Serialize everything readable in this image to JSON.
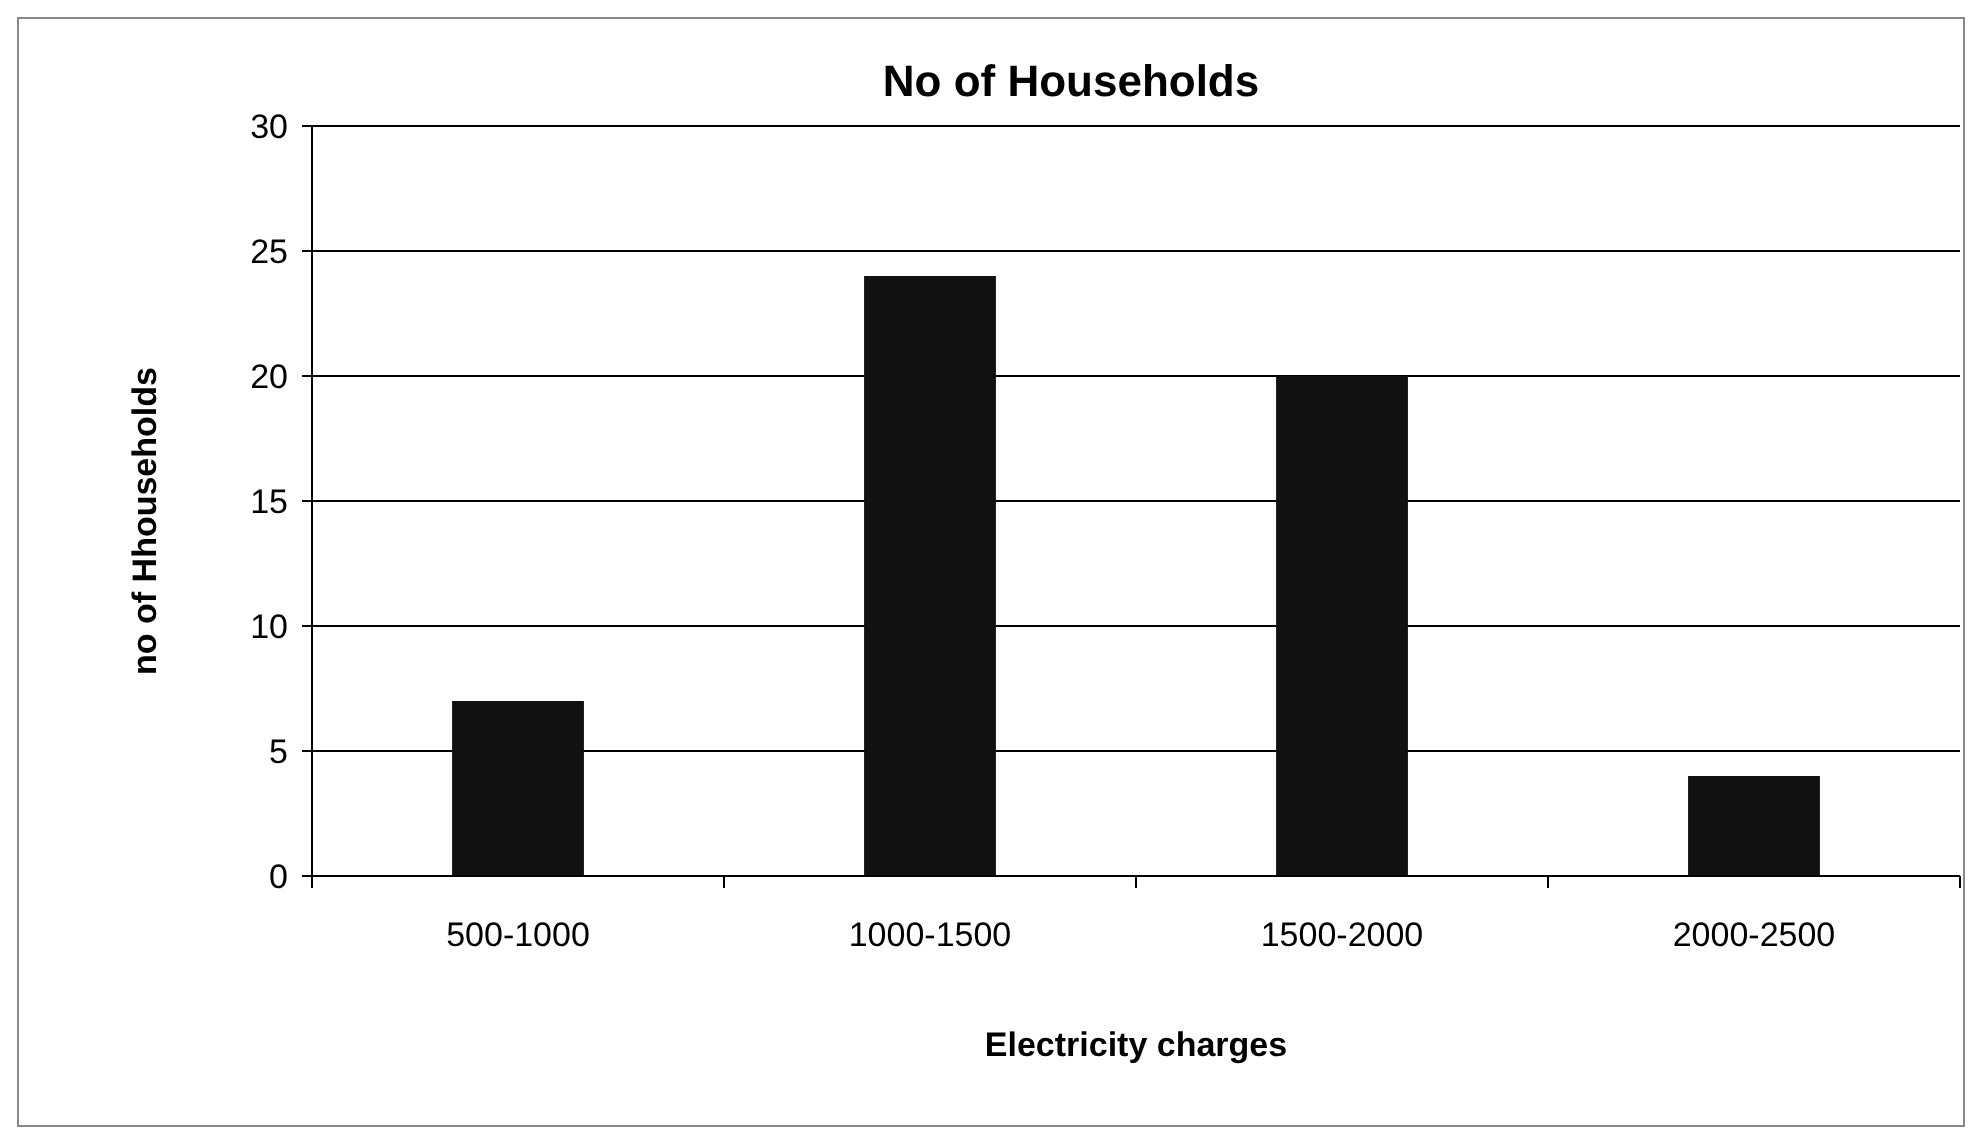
{
  "chart_data": {
    "type": "bar",
    "title": "No of Households",
    "xlabel": "Electricity charges",
    "ylabel": "no of Hhouseholds",
    "categories": [
      "500-1000",
      "1000-1500",
      "1500-2000",
      "2000-2500"
    ],
    "values": [
      7,
      24,
      20,
      4
    ],
    "color": "#111111",
    "ylim": [
      0,
      30
    ],
    "yticks": [
      0,
      5,
      10,
      15,
      20,
      25,
      30
    ],
    "grid": "y"
  }
}
